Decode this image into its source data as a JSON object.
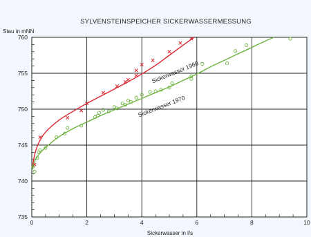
{
  "chart_data": {
    "type": "scatter",
    "title": "SYLVENSTEINSPEICHER   SICKERWASSERMESSUNG",
    "xlabel": "Sickerwasser in l/s",
    "ylabel": "Stau in mNN",
    "xlim": [
      0,
      10
    ],
    "ylim": [
      735,
      760
    ],
    "x_ticks": [
      "0",
      "2",
      "4",
      "6",
      "8",
      "10"
    ],
    "y_ticks": [
      "735",
      "740",
      "745",
      "750",
      "755",
      "760"
    ],
    "grid": true,
    "series": [
      {
        "name": "Sickerwasser 1960",
        "color": "#d9262e",
        "marker": "x",
        "points": [
          [
            0.1,
            742.3
          ],
          [
            0.3,
            746.1
          ],
          [
            1.3,
            748.8
          ],
          [
            1.8,
            749.8
          ],
          [
            2.0,
            750.8
          ],
          [
            2.6,
            752.3
          ],
          [
            3.1,
            753.2
          ],
          [
            3.4,
            753.8
          ],
          [
            3.5,
            754.1
          ],
          [
            3.8,
            754.7
          ],
          [
            3.8,
            755.4
          ],
          [
            4.0,
            756.2
          ],
          [
            4.4,
            756.8
          ],
          [
            5.0,
            758.0
          ],
          [
            5.4,
            759.2
          ],
          [
            5.8,
            759.8
          ]
        ],
        "curve": [
          [
            0.02,
            741.8
          ],
          [
            0.1,
            743.6
          ],
          [
            0.25,
            745.3
          ],
          [
            0.5,
            746.8
          ],
          [
            1.0,
            748.5
          ],
          [
            1.5,
            749.7
          ],
          [
            2.0,
            750.8
          ],
          [
            2.5,
            751.8
          ],
          [
            3.0,
            752.8
          ],
          [
            3.5,
            753.8
          ],
          [
            4.0,
            754.9
          ],
          [
            4.5,
            756.1
          ],
          [
            5.0,
            757.5
          ],
          [
            5.5,
            758.9
          ],
          [
            5.9,
            760.0
          ]
        ]
      },
      {
        "name": "Sickerwasser 1970",
        "color": "#6cb33f",
        "marker": "o",
        "points": [
          [
            0.05,
            742.0
          ],
          [
            0.1,
            741.3
          ],
          [
            0.2,
            743.2
          ],
          [
            0.25,
            744.0
          ],
          [
            0.3,
            744.3
          ],
          [
            0.5,
            744.6
          ],
          [
            0.9,
            746.1
          ],
          [
            1.2,
            746.6
          ],
          [
            1.3,
            747.4
          ],
          [
            1.8,
            747.7
          ],
          [
            2.3,
            748.9
          ],
          [
            2.4,
            749.1
          ],
          [
            2.45,
            749.5
          ],
          [
            2.6,
            749.9
          ],
          [
            2.8,
            749.7
          ],
          [
            3.0,
            750.3
          ],
          [
            3.1,
            750.1
          ],
          [
            3.3,
            750.8
          ],
          [
            3.4,
            750.6
          ],
          [
            3.5,
            751.2
          ],
          [
            3.6,
            751.0
          ],
          [
            3.8,
            751.6
          ],
          [
            4.0,
            752.0
          ],
          [
            4.3,
            752.4
          ],
          [
            4.5,
            752.5
          ],
          [
            4.7,
            752.7
          ],
          [
            5.0,
            753.0
          ],
          [
            5.1,
            753.6
          ],
          [
            5.8,
            754.6
          ],
          [
            5.8,
            754.2
          ],
          [
            6.2,
            756.3
          ],
          [
            7.1,
            756.4
          ],
          [
            7.4,
            758.1
          ],
          [
            7.8,
            758.9
          ],
          [
            9.4,
            759.8
          ]
        ],
        "curve": [
          [
            0.02,
            741.6
          ],
          [
            0.1,
            742.7
          ],
          [
            0.3,
            743.9
          ],
          [
            0.6,
            745.0
          ],
          [
            1.0,
            746.2
          ],
          [
            1.5,
            747.3
          ],
          [
            2.0,
            748.2
          ],
          [
            2.5,
            749.1
          ],
          [
            3.0,
            749.9
          ],
          [
            3.5,
            750.7
          ],
          [
            4.0,
            751.5
          ],
          [
            4.5,
            752.3
          ],
          [
            5.0,
            753.1
          ],
          [
            5.5,
            754.0
          ],
          [
            6.0,
            754.9
          ],
          [
            6.5,
            755.9
          ],
          [
            7.0,
            756.8
          ],
          [
            7.5,
            757.7
          ],
          [
            8.0,
            758.6
          ],
          [
            8.5,
            759.5
          ],
          [
            8.8,
            760.0
          ]
        ]
      }
    ],
    "annotations": [
      "Sickerwasser 1960",
      "Sickerwasser 1970"
    ]
  }
}
